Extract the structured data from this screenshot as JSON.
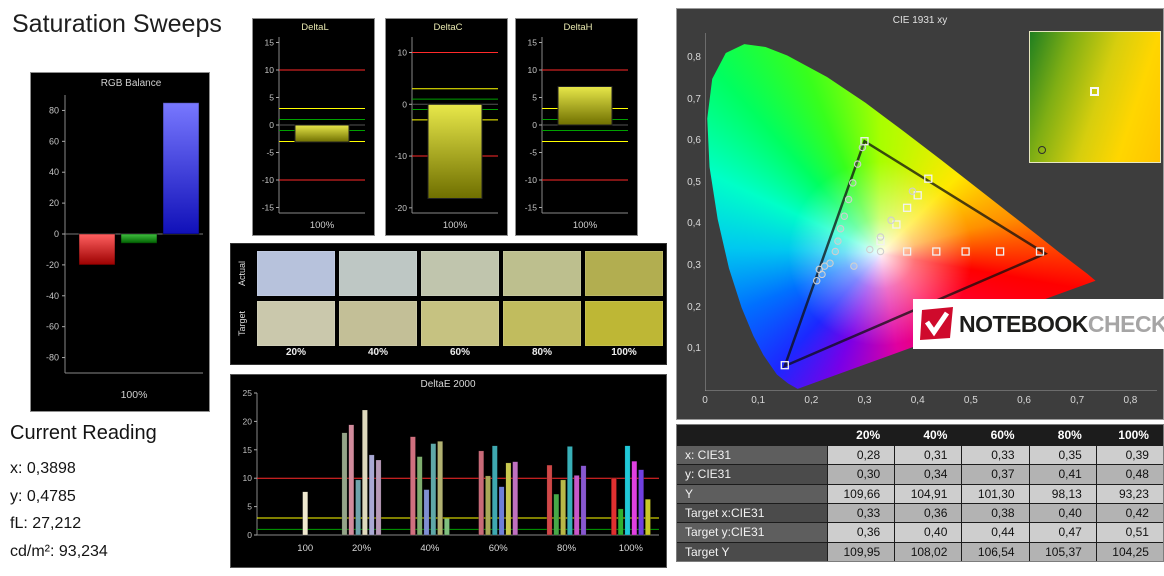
{
  "page": {
    "title": "Saturation Sweeps"
  },
  "current_reading": {
    "title": "Current Reading",
    "x": "x: 0,3898",
    "y": "y: 0,4785",
    "fl": "fL: 27,212",
    "cd": "cd/m²: 93,234"
  },
  "logo": {
    "brand_bold": "NOTEBOOK",
    "brand_light": "CHECK"
  },
  "swatch_panel": {
    "rows": [
      {
        "label": "Actual",
        "colors": [
          "#b7c2dc",
          "#bec7c4",
          "#c0c5ad",
          "#bdbf8e",
          "#b2ae50"
        ]
      },
      {
        "label": "Target",
        "colors": [
          "#cac8ac",
          "#c3bf97",
          "#c6c281",
          "#c1bc5e",
          "#beb735"
        ]
      }
    ],
    "col_labels": [
      "20%",
      "40%",
      "60%",
      "80%",
      "100%"
    ]
  },
  "cie_table": {
    "header": [
      "",
      "20%",
      "40%",
      "60%",
      "80%",
      "100%"
    ],
    "rows": [
      {
        "label": "x: CIE31",
        "values": [
          "0,28",
          "0,31",
          "0,33",
          "0,35",
          "0,39"
        ]
      },
      {
        "label": "y: CIE31",
        "values": [
          "0,30",
          "0,34",
          "0,37",
          "0,41",
          "0,48"
        ]
      },
      {
        "label": "Y",
        "values": [
          "109,66",
          "104,91",
          "101,30",
          "98,13",
          "93,23"
        ]
      },
      {
        "label": "Target x:CIE31",
        "values": [
          "0,33",
          "0,36",
          "0,38",
          "0,40",
          "0,42"
        ]
      },
      {
        "label": "Target y:CIE31",
        "values": [
          "0,36",
          "0,40",
          "0,44",
          "0,47",
          "0,51"
        ]
      },
      {
        "label": "Target Y",
        "values": [
          "109,95",
          "108,02",
          "106,54",
          "105,37",
          "104,25"
        ]
      }
    ]
  },
  "chart_data": [
    {
      "id": "rgb_balance",
      "type": "bar",
      "title": "RGB Balance",
      "categories": [
        "Red",
        "Green",
        "Blue"
      ],
      "values": [
        -20,
        -6,
        85
      ],
      "colors": [
        "#ff1111",
        "#00a018",
        "#2a2aff"
      ],
      "ylim": [
        -90,
        90
      ],
      "yticks": [
        80,
        60,
        40,
        20,
        0,
        -20,
        -40,
        -60,
        -80
      ],
      "xlabel": "100%"
    },
    {
      "id": "deltaL",
      "type": "bar",
      "title": "DeltaL",
      "values": [
        -3.1
      ],
      "ylim": [
        -16,
        16
      ],
      "yticks": [
        15,
        10,
        5,
        0,
        -5,
        -10,
        -15
      ],
      "ref_lines": [
        {
          "y": 10,
          "color": "#ff2a2a"
        },
        {
          "y": -10,
          "color": "#ff2a2a"
        },
        {
          "y": 3,
          "color": "#ffff00"
        },
        {
          "y": -3,
          "color": "#ffff00"
        },
        {
          "y": 1,
          "color": "#00a000"
        },
        {
          "y": -1,
          "color": "#00a000"
        }
      ],
      "xlabel": "100%"
    },
    {
      "id": "deltaC",
      "type": "bar",
      "title": "DeltaC",
      "values": [
        -18.2
      ],
      "ylim": [
        -21,
        13
      ],
      "yticks": [
        10,
        0,
        -10,
        -20
      ],
      "ref_lines": [
        {
          "y": 10,
          "color": "#ff2a2a"
        },
        {
          "y": -10,
          "color": "#ff2a2a"
        },
        {
          "y": 3,
          "color": "#ffff00"
        },
        {
          "y": -3,
          "color": "#ffff00"
        },
        {
          "y": 1,
          "color": "#00a000"
        },
        {
          "y": -1,
          "color": "#00a000"
        }
      ],
      "xlabel": "100%"
    },
    {
      "id": "deltaH",
      "type": "bar",
      "title": "DeltaH",
      "values": [
        7.0
      ],
      "ylim": [
        -16,
        16
      ],
      "yticks": [
        15,
        10,
        5,
        0,
        -5,
        -10,
        -15
      ],
      "ref_lines": [
        {
          "y": 10,
          "color": "#ff2a2a"
        },
        {
          "y": -10,
          "color": "#ff2a2a"
        },
        {
          "y": 3,
          "color": "#ffff00"
        },
        {
          "y": -3,
          "color": "#ffff00"
        },
        {
          "y": 1,
          "color": "#00a000"
        },
        {
          "y": -1,
          "color": "#00a000"
        }
      ],
      "xlabel": "100%"
    },
    {
      "id": "deltaE2000",
      "type": "grouped-bar",
      "title": "DeltaE 2000",
      "ylim": [
        0,
        25
      ],
      "yticks": [
        25,
        20,
        15,
        10,
        5,
        0
      ],
      "ref_lines": [
        {
          "y": 10,
          "color": "#ff2a2a"
        },
        {
          "y": 3,
          "color": "#ffff00"
        },
        {
          "y": 1,
          "color": "#00a000"
        }
      ],
      "group_pos": [
        0.12,
        0.26,
        0.43,
        0.6,
        0.77,
        0.93
      ],
      "groups": [
        {
          "label": "100",
          "bars": [
            {
              "v": 7.6,
              "c": "#efe9cf"
            }
          ]
        },
        {
          "label": "20%",
          "bars": [
            {
              "v": 18.0,
              "c": "#94a488"
            },
            {
              "v": 19.4,
              "c": "#d28c9d"
            },
            {
              "v": 9.7,
              "c": "#6fa3ab"
            },
            {
              "v": 22.0,
              "c": "#ded9bd"
            },
            {
              "v": 14.1,
              "c": "#a9a9d4"
            },
            {
              "v": 13.2,
              "c": "#b79ab8"
            }
          ]
        },
        {
          "label": "40%",
          "bars": [
            {
              "v": 17.3,
              "c": "#d0707f"
            },
            {
              "v": 13.8,
              "c": "#7fae6f"
            },
            {
              "v": 8.0,
              "c": "#7f8fd2"
            },
            {
              "v": 16.1,
              "c": "#5fa8a8"
            },
            {
              "v": 16.5,
              "c": "#b2b272"
            },
            {
              "v": 2.9,
              "c": "#7fc07f"
            }
          ]
        },
        {
          "label": "60%",
          "bars": [
            {
              "v": 14.8,
              "c": "#c86a78"
            },
            {
              "v": 10.4,
              "c": "#a8a858"
            },
            {
              "v": 15.7,
              "c": "#3fa8b0"
            },
            {
              "v": 8.5,
              "c": "#6f7fd8"
            },
            {
              "v": 12.7,
              "c": "#c8c84f"
            },
            {
              "v": 12.9,
              "c": "#c070c0"
            }
          ]
        },
        {
          "label": "80%",
          "bars": [
            {
              "v": 12.3,
              "c": "#d04848"
            },
            {
              "v": 7.2,
              "c": "#48a848"
            },
            {
              "v": 9.7,
              "c": "#b8b848"
            },
            {
              "v": 15.6,
              "c": "#38b0b8"
            },
            {
              "v": 10.5,
              "c": "#c858c8"
            },
            {
              "v": 12.2,
              "c": "#8858d0"
            }
          ]
        },
        {
          "label": "100%",
          "bars": [
            {
              "v": 10.0,
              "c": "#e03030"
            },
            {
              "v": 4.6,
              "c": "#30b030"
            },
            {
              "v": 15.7,
              "c": "#20c8d8"
            },
            {
              "v": 13.0,
              "c": "#e040e0"
            },
            {
              "v": 11.5,
              "c": "#7040e0"
            },
            {
              "v": 6.3,
              "c": "#c8c828"
            }
          ]
        }
      ]
    },
    {
      "id": "cie",
      "type": "scatter",
      "title": "CIE 1931 xy",
      "xlim": [
        0,
        0.85
      ],
      "ylim": [
        0,
        0.86
      ],
      "xticks": [
        "0",
        "0,1",
        "0,2",
        "0,3",
        "0,4",
        "0,5",
        "0,6",
        "0,7",
        "0,8"
      ],
      "yticks": [
        "0,1",
        "0,2",
        "0,3",
        "0,4",
        "0,5",
        "0,6",
        "0,7",
        "0,8"
      ],
      "gamut_triangle": [
        [
          0.64,
          0.33
        ],
        [
          0.3,
          0.6
        ],
        [
          0.15,
          0.06
        ]
      ],
      "target_squares": [
        [
          0.38,
          0.335
        ],
        [
          0.435,
          0.335
        ],
        [
          0.49,
          0.335
        ],
        [
          0.555,
          0.335
        ],
        [
          0.63,
          0.335
        ],
        [
          0.33,
          0.36
        ],
        [
          0.36,
          0.4
        ],
        [
          0.38,
          0.44
        ],
        [
          0.4,
          0.47
        ],
        [
          0.42,
          0.51
        ],
        [
          0.3,
          0.6
        ],
        [
          0.15,
          0.062
        ]
      ],
      "measured_circles": [
        [
          0.28,
          0.3
        ],
        [
          0.31,
          0.34
        ],
        [
          0.33,
          0.37
        ],
        [
          0.35,
          0.41
        ],
        [
          0.39,
          0.48
        ],
        [
          0.245,
          0.335
        ],
        [
          0.25,
          0.36
        ],
        [
          0.255,
          0.39
        ],
        [
          0.262,
          0.42
        ],
        [
          0.27,
          0.46
        ],
        [
          0.278,
          0.5
        ],
        [
          0.287,
          0.545
        ],
        [
          0.296,
          0.585
        ],
        [
          0.225,
          0.3
        ],
        [
          0.235,
          0.307
        ],
        [
          0.215,
          0.292
        ],
        [
          0.21,
          0.265
        ],
        [
          0.22,
          0.28
        ],
        [
          0.33,
          0.335
        ]
      ],
      "inset": {
        "square": [
          0.46,
          0.42
        ],
        "circle": [
          0.06,
          0.88
        ]
      }
    }
  ]
}
